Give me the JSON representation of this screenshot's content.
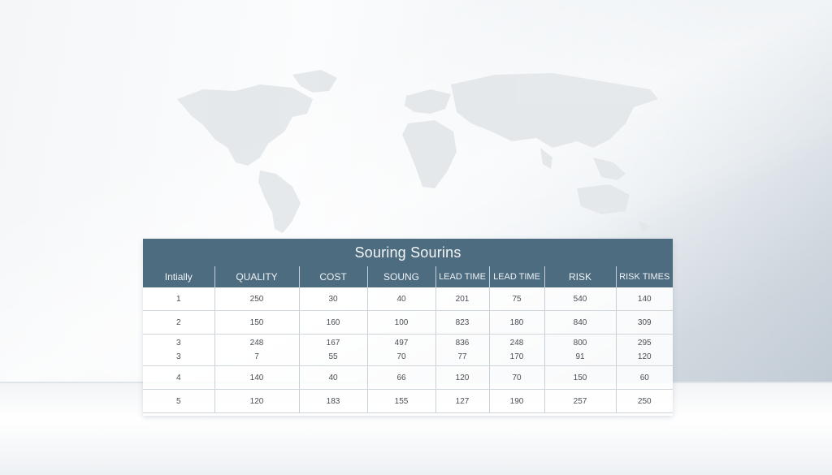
{
  "table": {
    "title": "Souring Sourins",
    "headers": [
      "Intially",
      "QUALITY",
      "COST",
      "SOUNG",
      "LEAD TIME",
      "LEAD TIME",
      "RISK",
      "RISK TIMES"
    ],
    "rows": [
      [
        "1",
        "250",
        "30",
        "40",
        "201",
        "75",
        "540",
        "140"
      ],
      [
        "2",
        "150",
        "160",
        "100",
        "823",
        "180",
        "840",
        "309"
      ],
      [
        "3",
        "248",
        "167",
        "497",
        "836",
        "248",
        "800",
        "295"
      ],
      [
        "3",
        "7",
        "55",
        "70",
        "77",
        "170",
        "91",
        "120"
      ],
      [
        "4",
        "140",
        "40",
        "66",
        "120",
        "70",
        "150",
        "60"
      ],
      [
        "5",
        "120",
        "183",
        "155",
        "127",
        "190",
        "257",
        "250"
      ]
    ]
  }
}
